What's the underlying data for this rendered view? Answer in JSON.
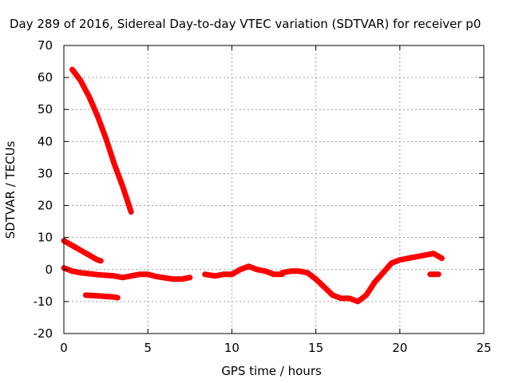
{
  "chart_data": {
    "type": "scatter",
    "title": "Day 289 of 2016, Sidereal Day-to-day VTEC variation (SDTVAR) for receiver p0",
    "xlabel": "GPS time / hours",
    "ylabel": "SDTVAR / TECUs",
    "xlim": [
      0,
      25
    ],
    "ylim": [
      -20,
      70
    ],
    "xticks": [
      "0",
      "5",
      "10",
      "15",
      "20",
      "25"
    ],
    "yticks": [
      "-20",
      "-10",
      "0",
      "10",
      "20",
      "30",
      "40",
      "50",
      "60",
      "70"
    ],
    "grid": true,
    "legend": "none",
    "color": "#ff0000",
    "series": [
      {
        "points": [
          [
            0.5,
            62.5
          ],
          [
            1.0,
            59
          ],
          [
            1.5,
            54
          ],
          [
            2.0,
            48
          ],
          [
            2.5,
            41
          ],
          [
            3.0,
            33
          ],
          [
            3.5,
            26
          ],
          [
            4.0,
            18
          ]
        ]
      },
      {
        "points": [
          [
            0.0,
            9
          ],
          [
            0.5,
            7.5
          ],
          [
            1.0,
            6
          ],
          [
            1.5,
            4.5
          ],
          [
            2.0,
            3
          ],
          [
            2.2,
            2.7
          ]
        ]
      },
      {
        "points": [
          [
            0.0,
            0.5
          ],
          [
            0.5,
            -0.5
          ],
          [
            1.0,
            -1
          ],
          [
            1.5,
            -1.3
          ],
          [
            2.0,
            -1.6
          ],
          [
            2.5,
            -1.8
          ],
          [
            3.0,
            -2
          ],
          [
            3.5,
            -2.5
          ],
          [
            4.0,
            -2
          ],
          [
            4.5,
            -1.5
          ],
          [
            5.0,
            -1.5
          ],
          [
            5.5,
            -2.2
          ],
          [
            6.0,
            -2.6
          ],
          [
            6.5,
            -3
          ],
          [
            7.0,
            -3
          ],
          [
            7.5,
            -2.5
          ]
        ]
      },
      {
        "points": [
          [
            1.3,
            -8
          ],
          [
            2.0,
            -8.2
          ],
          [
            2.5,
            -8.4
          ],
          [
            3.0,
            -8.6
          ],
          [
            3.2,
            -8.8
          ]
        ]
      },
      {
        "points": [
          [
            8.4,
            -1.5
          ],
          [
            9.0,
            -2
          ],
          [
            9.5,
            -1.5
          ],
          [
            10.0,
            -1.5
          ],
          [
            10.5,
            0
          ],
          [
            11.0,
            1
          ],
          [
            11.5,
            0
          ],
          [
            12.0,
            -0.5
          ],
          [
            12.5,
            -1.5
          ],
          [
            13.0,
            -1.5
          ]
        ]
      },
      {
        "points": [
          [
            13.0,
            -1
          ],
          [
            13.5,
            -0.5
          ],
          [
            14.0,
            -0.5
          ],
          [
            14.5,
            -1
          ],
          [
            15.0,
            -3
          ],
          [
            15.5,
            -5.5
          ],
          [
            16.0,
            -8
          ],
          [
            16.5,
            -9
          ],
          [
            17.0,
            -9
          ],
          [
            17.5,
            -10
          ],
          [
            18.0,
            -8
          ],
          [
            18.5,
            -4
          ],
          [
            19.0,
            -1
          ],
          [
            19.5,
            2
          ],
          [
            20.0,
            3
          ],
          [
            20.5,
            3.5
          ],
          [
            21.0,
            4
          ],
          [
            21.5,
            4.5
          ],
          [
            22.0,
            5
          ],
          [
            22.5,
            3.5
          ]
        ]
      },
      {
        "points": [
          [
            21.8,
            -1.5
          ],
          [
            22.3,
            -1.5
          ]
        ]
      }
    ]
  }
}
